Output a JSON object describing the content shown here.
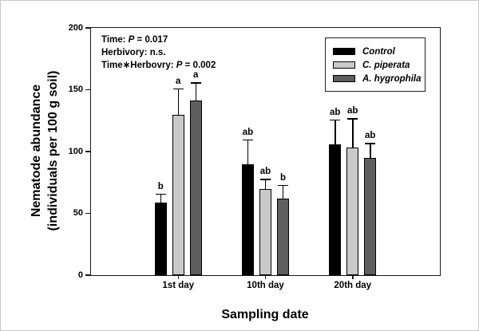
{
  "chart_data": {
    "type": "bar",
    "title": "",
    "xlabel": "Sampling date",
    "ylabel": "Nematode abundance (individuals per 100 g soil)",
    "ylabel_lines": [
      "Nematode abundance",
      "(individuals per 100 g soil)"
    ],
    "categories": [
      "1st day",
      "10th day",
      "20th day"
    ],
    "series": [
      {
        "name": "Control",
        "color": "#000000",
        "values": [
          59,
          90,
          106
        ],
        "errors_plus": [
          7,
          20,
          20
        ],
        "sig_letters": [
          "b",
          "ab",
          "ab"
        ]
      },
      {
        "name": "C. piperata",
        "color": "#c9c9c9",
        "values": [
          130,
          70,
          103
        ],
        "errors_plus": [
          21,
          8,
          24
        ],
        "sig_letters": [
          "a",
          "ab",
          "ab"
        ]
      },
      {
        "name": "A. hygrophila",
        "color": "#5e5e5e",
        "values": [
          141,
          62,
          95
        ],
        "errors_plus": [
          15,
          11,
          12
        ],
        "sig_letters": [
          "a",
          "b",
          "ab"
        ]
      }
    ],
    "ylim": [
      0,
      200
    ],
    "yticks": [
      0,
      50,
      100,
      150,
      200
    ],
    "grid": false,
    "legend_position": "top-right",
    "error_bars": "upper-only"
  },
  "stats_box": {
    "lines": [
      {
        "pre": "Time: ",
        "p": "P",
        "post": " = 0.017"
      },
      {
        "pre": "Herbivory: n.s.",
        "p": "",
        "post": ""
      },
      {
        "pre": "Time∗Herbovry: ",
        "p": "P",
        "post": " = 0.002"
      }
    ]
  }
}
